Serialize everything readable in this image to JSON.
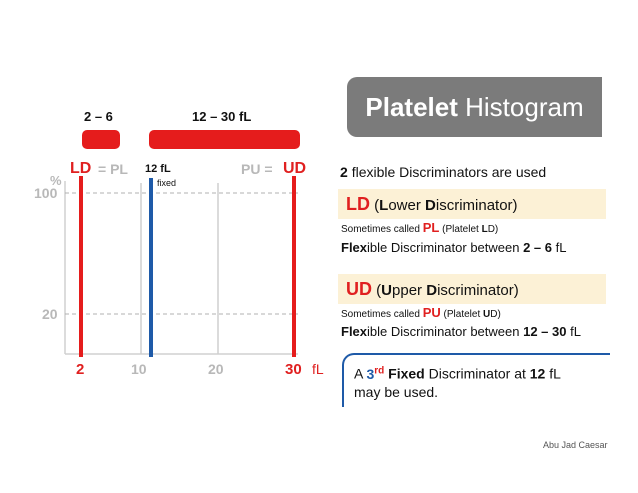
{
  "ranges": {
    "left_label": "2 – 6",
    "right_label": "12 – 30 fL"
  },
  "chart": {
    "labels": {
      "ld": "LD",
      "eq_pl": "= PL",
      "twelve": "12 fL",
      "fixed": "fixed",
      "pu_eq": "PU =",
      "ud": "UD"
    },
    "y_unit": "%",
    "y_ticks": [
      "100",
      "20"
    ],
    "x_ticks": [
      "2",
      "10",
      "20",
      "30"
    ],
    "x_unit": "fL",
    "colors": {
      "red": "#e51c1c",
      "blue": "#1e5aa8",
      "gray": "#cfcfcf"
    }
  },
  "title": {
    "bold": "Platelet",
    "rest": "Histogram"
  },
  "intro": {
    "count": "2",
    "rest": "flexible Discriminators are used"
  },
  "ld_section": {
    "abbr": "LD",
    "open": "(",
    "L": "L",
    "ower": "ower",
    "D": "D",
    "iscriminator": "iscriminator)",
    "sometimes_prefix": "Sometimes called",
    "alias": "PL",
    "alias_open": "(Platelet",
    "alias_letter": "L",
    "alias_close": "D)",
    "flex_bold": "Flex",
    "flex_rest": "ible Discriminator between",
    "range": "2 – 6",
    "unit": "fL"
  },
  "ud_section": {
    "abbr": "UD",
    "open": "(",
    "U": "U",
    "pper": "pper",
    "D": "D",
    "iscriminator": "iscriminator)",
    "sometimes_prefix": "Sometimes called",
    "alias": "PU",
    "alias_open": "(Platelet",
    "alias_letter": "U",
    "alias_close": "D)",
    "flex_bold": "Flex",
    "flex_rest": "ible Discriminator between",
    "range": "12 – 30",
    "unit": "fL"
  },
  "note": {
    "a": "A",
    "num": "3",
    "sup": "rd",
    "fixed": "Fixed",
    "mid": "Discriminator at",
    "val": "12",
    "unit": "fL",
    "line2": "may be used."
  },
  "credit": "Abu Jad Caesar"
}
